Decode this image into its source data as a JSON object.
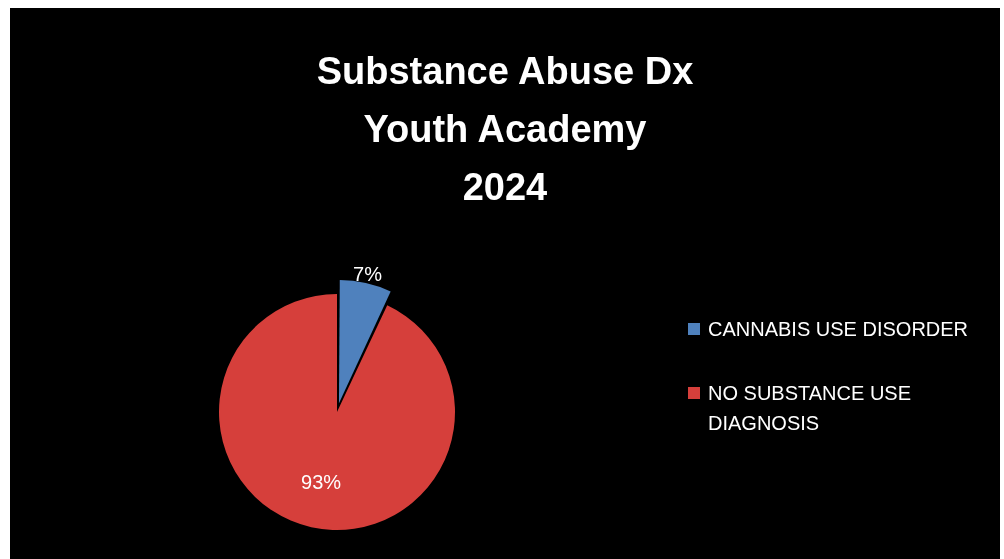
{
  "chart_data": {
    "type": "pie",
    "title": "Substance Abuse Dx\nYouth Academy\n2024",
    "categories": [
      "CANNABIS USE DISORDER",
      "NO SUBSTANCE USE DIAGNOSIS"
    ],
    "values": [
      7,
      93
    ],
    "colors": [
      "#4f81bd",
      "#d63f3b"
    ],
    "value_labels": [
      "7%",
      "93%"
    ],
    "legend": "right"
  }
}
